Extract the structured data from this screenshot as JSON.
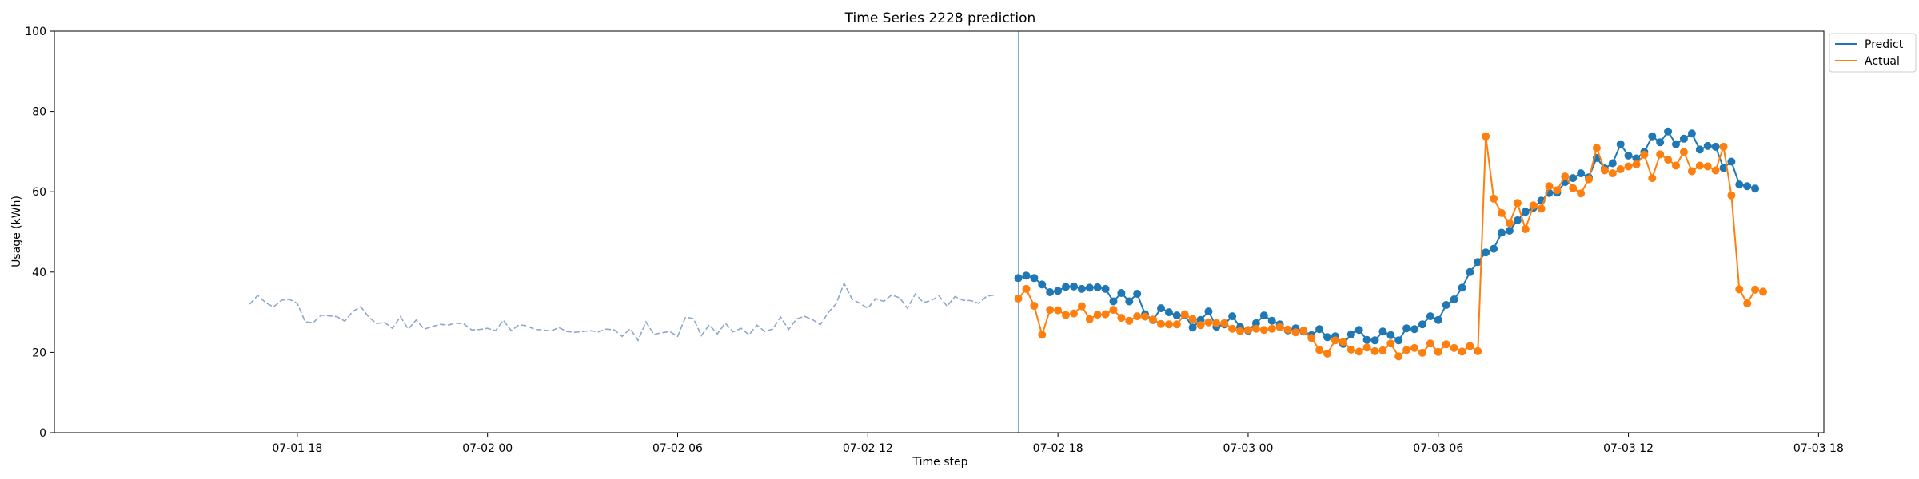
{
  "chart_data": {
    "type": "line",
    "title": "Time Series 2228 prediction",
    "xlabel": "Time step",
    "ylabel": "Usage (kWh)",
    "xlim": [
      "2023-07-01 10:20",
      "2023-07-03 18:10"
    ],
    "ylim": [
      0,
      100
    ],
    "x_ticks": [
      {
        "t": "2023-07-01 18:00",
        "label": "07-01 18"
      },
      {
        "t": "2023-07-02 00:00",
        "label": "07-02 00"
      },
      {
        "t": "2023-07-02 06:00",
        "label": "07-02 06"
      },
      {
        "t": "2023-07-02 12:00",
        "label": "07-02 12"
      },
      {
        "t": "2023-07-02 18:00",
        "label": "07-02 18"
      },
      {
        "t": "2023-07-03 00:00",
        "label": "07-03 00"
      },
      {
        "t": "2023-07-03 06:00",
        "label": "07-03 06"
      },
      {
        "t": "2023-07-03 12:00",
        "label": "07-03 12"
      },
      {
        "t": "2023-07-03 18:00",
        "label": "07-03 18"
      }
    ],
    "y_ticks": [
      0,
      20,
      40,
      60,
      80,
      100
    ],
    "grid": false,
    "legend_position": "outside top-right",
    "split_time": "2023-07-02 16:45",
    "history": {
      "start": "2023-07-01 16:30",
      "step_minutes": 15,
      "color": "#8ea8cc",
      "style": "dashed",
      "values": [
        32.0,
        34.2,
        32.4,
        31.3,
        33.0,
        33.2,
        32.2,
        27.6,
        27.4,
        29.3,
        29.1,
        28.9,
        27.8,
        30.2,
        31.4,
        28.8,
        27.2,
        27.5,
        26.0,
        28.9,
        25.8,
        28.1,
        25.8,
        26.4,
        27.0,
        26.8,
        27.3,
        27.1,
        25.6,
        25.7,
        26.0,
        25.4,
        28.0,
        25.4,
        26.9,
        26.6,
        25.7,
        25.6,
        25.3,
        26.2,
        25.2,
        25.0,
        25.2,
        25.4,
        25.1,
        25.8,
        25.6,
        24.0,
        25.9,
        23.0,
        27.6,
        24.5,
        24.9,
        25.2,
        24.0,
        28.8,
        28.4,
        24.2,
        26.9,
        24.6,
        27.3,
        25.1,
        26.0,
        24.4,
        26.8,
        25.2,
        25.8,
        28.8,
        25.7,
        28.3,
        29.0,
        28.2,
        26.9,
        29.9,
        32.1,
        37.2,
        33.3,
        32.2,
        31.0,
        33.4,
        32.7,
        34.3,
        33.6,
        31.0,
        34.6,
        32.4,
        32.9,
        34.1,
        31.5,
        33.9,
        33.0,
        32.9,
        32.2,
        34.0,
        34.3
      ]
    },
    "series": [
      {
        "name": "Predict",
        "color": "#1f77b4",
        "start": "2023-07-02 16:45",
        "step_minutes": 15,
        "values": [
          38.5,
          39.1,
          38.5,
          36.9,
          35.0,
          35.3,
          36.3,
          36.4,
          35.8,
          36.1,
          36.2,
          35.8,
          32.7,
          34.8,
          32.7,
          34.6,
          29.5,
          28.1,
          31.0,
          30.0,
          29.2,
          29.3,
          26.2,
          28.1,
          30.2,
          26.4,
          27.0,
          29.0,
          26.3,
          25.4,
          27.3,
          29.2,
          27.9,
          27.0,
          25.5,
          26.0,
          25.2,
          24.3,
          25.8,
          23.8,
          24.0,
          22.1,
          24.5,
          25.6,
          23.1,
          23.0,
          25.2,
          24.3,
          23.0,
          26.0,
          25.8,
          27.0,
          29.0,
          28.1,
          31.8,
          33.2,
          36.1,
          40.0,
          42.5,
          44.9,
          45.8,
          49.8,
          50.3,
          52.9,
          55.0,
          56.0,
          57.8,
          59.7,
          59.8,
          62.4,
          63.4,
          64.6,
          63.6,
          68.4,
          65.8,
          67.1,
          71.8,
          69.0,
          68.3,
          69.9,
          73.8,
          72.3,
          75.0,
          71.8,
          73.2,
          74.5,
          70.5,
          71.4,
          71.2,
          65.9,
          67.5,
          61.8,
          61.4,
          60.8
        ]
      },
      {
        "name": "Actual",
        "color": "#ff7f0e",
        "start": "2023-07-02 16:45",
        "step_minutes": 15,
        "values": [
          33.4,
          35.8,
          31.6,
          24.4,
          30.6,
          30.5,
          29.3,
          29.7,
          31.5,
          28.3,
          29.4,
          29.5,
          30.6,
          28.6,
          27.9,
          29.0,
          28.9,
          28.2,
          27.1,
          27.0,
          27.0,
          29.5,
          28.3,
          26.8,
          27.5,
          27.3,
          27.3,
          25.9,
          25.3,
          25.6,
          25.9,
          25.6,
          25.9,
          26.3,
          25.7,
          25.0,
          25.4,
          23.6,
          20.6,
          19.7,
          23.0,
          22.6,
          20.7,
          20.2,
          21.2,
          20.3,
          20.5,
          22.2,
          19.0,
          20.6,
          21.1,
          19.9,
          22.2,
          20.1,
          22.0,
          21.1,
          20.2,
          21.6,
          20.3,
          73.8,
          58.3,
          54.7,
          52.2,
          57.2,
          50.7,
          56.6,
          55.8,
          61.4,
          60.4,
          63.8,
          60.9,
          59.6,
          63.1,
          70.9,
          65.3,
          64.6,
          65.6,
          66.3,
          66.8,
          69.2,
          63.4,
          69.3,
          68.0,
          66.5,
          69.9,
          65.1,
          66.5,
          66.3,
          65.3,
          71.2,
          59.1,
          35.7,
          32.2,
          35.6,
          35.1
        ]
      }
    ]
  }
}
